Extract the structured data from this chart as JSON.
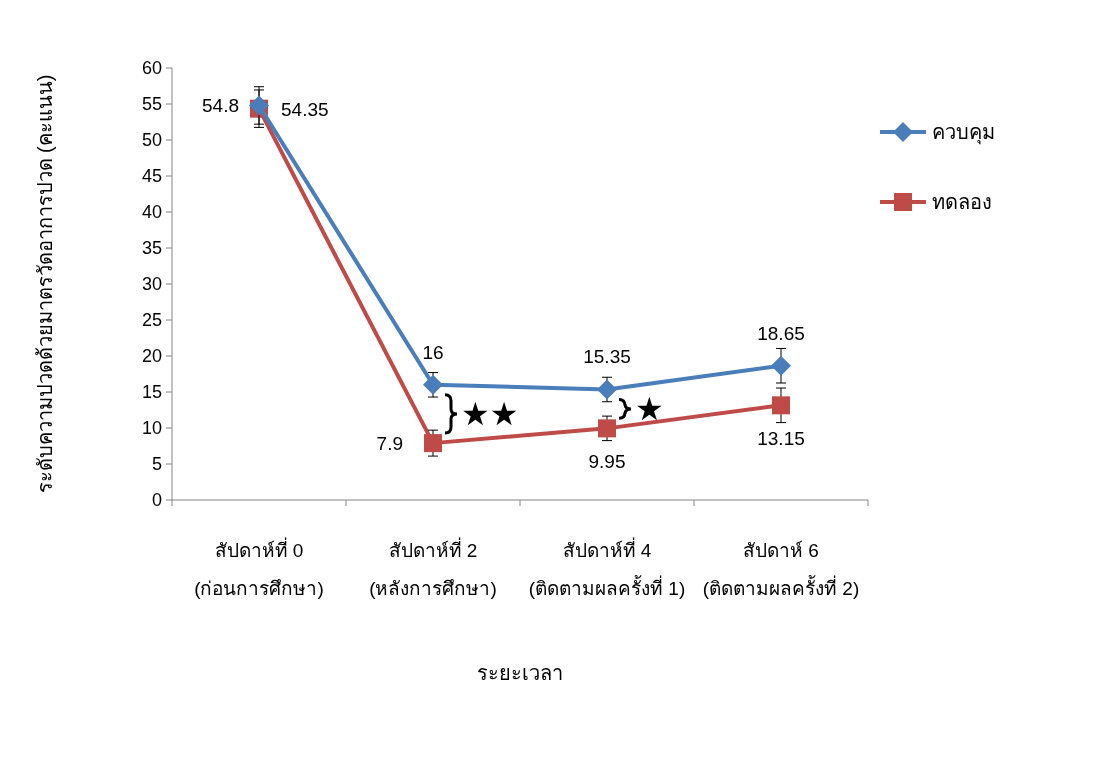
{
  "chart_data": {
    "type": "line",
    "xlabel": "ระยะเวลา",
    "ylabel": "ระดับความปวดด้วยมาตรวัดอาการปวด (คะแนน)",
    "categories": [
      "สัปดาห์ที่ 0\n(ก่อนการศึกษา)",
      "สัปดาห์ที่ 2\n(หลังการศึกษา)",
      "สัปดาห์ที่ 4\n(ติดตามผลครั้งที่ 1)",
      "สัปดาห์ 6\n(ติดตามผลครั้งที่ 2)"
    ],
    "series": [
      {
        "name": "ควบคุม",
        "color": "#4a7ebb",
        "marker": "diamond",
        "values": [
          54.8,
          16,
          15.35,
          18.65
        ],
        "errors": [
          2.6,
          1.7,
          1.7,
          2.4
        ]
      },
      {
        "name": "ทดลอง",
        "color": "#be4b48",
        "marker": "square",
        "values": [
          54.35,
          7.9,
          9.95,
          13.15
        ],
        "errors": [
          2.6,
          1.8,
          1.7,
          2.4
        ]
      }
    ],
    "ylim": [
      0,
      60
    ],
    "yticks": [
      0,
      5,
      10,
      15,
      20,
      25,
      30,
      35,
      40,
      45,
      50,
      55,
      60
    ],
    "data_labels": true,
    "grid": false,
    "legend": "right",
    "line_style": "solid",
    "annotations": [
      "★★",
      "★"
    ]
  }
}
